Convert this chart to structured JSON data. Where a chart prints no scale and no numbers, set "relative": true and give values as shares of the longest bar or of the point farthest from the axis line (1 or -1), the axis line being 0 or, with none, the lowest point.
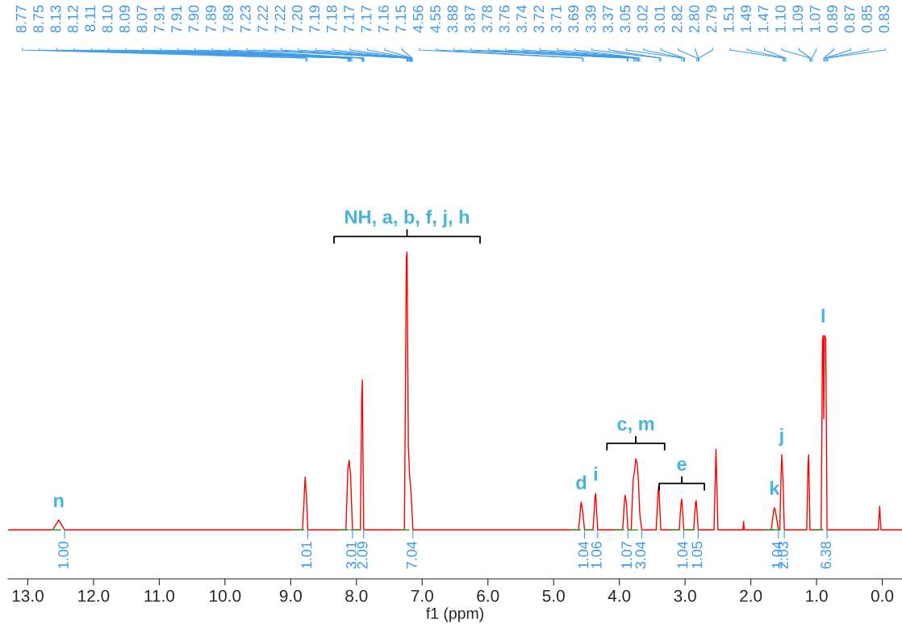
{
  "chart_data": {
    "type": "line",
    "relative": true,
    "xlabel": "f1 (ppm)",
    "xlim": [
      13.3,
      -0.3
    ],
    "xticks": [
      {
        "value": 13,
        "label": "13.0"
      },
      {
        "value": 12,
        "label": "12.0"
      },
      {
        "value": 11,
        "label": "11.0"
      },
      {
        "value": 10,
        "label": "10.0"
      },
      {
        "value": 9,
        "label": "9.0"
      },
      {
        "value": 8,
        "label": "8.0"
      },
      {
        "value": 7,
        "label": "7.0"
      },
      {
        "value": 6,
        "label": "6.0"
      },
      {
        "value": 5,
        "label": "5.0"
      },
      {
        "value": 4,
        "label": "4.0"
      },
      {
        "value": 3,
        "label": "3.0"
      },
      {
        "value": 2,
        "label": "2.0"
      },
      {
        "value": 1,
        "label": "1.0"
      },
      {
        "value": 0,
        "label": "0.0"
      }
    ],
    "marker": "none",
    "line_style": "solid",
    "series": [
      {
        "color": "#ff0000",
        "x": [
          13.3,
          12.62,
          12.53,
          12.44,
          8.82,
          8.78,
          8.76,
          8.74,
          8.16,
          8.13,
          8.11,
          8.09,
          8.06,
          7.94,
          7.92,
          7.91,
          7.89,
          7.27,
          7.24,
          7.23,
          7.21,
          7.19,
          7.17,
          7.14,
          4.62,
          4.59,
          4.58,
          4.56,
          4.53,
          4.4,
          4.37,
          4.36,
          4.33,
          3.95,
          3.92,
          3.91,
          3.89,
          3.87,
          3.82,
          3.79,
          3.77,
          3.75,
          3.73,
          3.71,
          3.69,
          3.66,
          3.44,
          3.41,
          3.4,
          3.37,
          3.09,
          3.06,
          3.05,
          3.02,
          2.87,
          2.84,
          2.83,
          2.8,
          2.56,
          2.53,
          2.5,
          2.12,
          2.11,
          2.1,
          1.69,
          1.65,
          1.64,
          1.62,
          1.58,
          1.56,
          1.54,
          1.53,
          1.51,
          1.49,
          1.15,
          1.13,
          1.12,
          1.1,
          0.93,
          0.91,
          0.9,
          0.89,
          0.88,
          0.86,
          0.84,
          0.06,
          0.04,
          0.02,
          -0.3
        ],
        "values": [
          0.15,
          0.15,
          0.18,
          0.15,
          0.15,
          0.312,
          0.252,
          0.15,
          0.15,
          0.337,
          0.363,
          0.32,
          0.15,
          0.15,
          0.55,
          0.609,
          0.15,
          0.15,
          0.983,
          1.0,
          0.405,
          0.312,
          0.269,
          0.15,
          0.15,
          0.218,
          0.235,
          0.21,
          0.15,
          0.15,
          0.252,
          0.261,
          0.15,
          0.15,
          0.244,
          0.256,
          0.227,
          0.15,
          0.15,
          0.303,
          0.329,
          0.367,
          0.354,
          0.303,
          0.201,
          0.15,
          0.15,
          0.269,
          0.286,
          0.15,
          0.15,
          0.235,
          0.244,
          0.15,
          0.15,
          0.235,
          0.239,
          0.15,
          0.15,
          0.397,
          0.15,
          0.15,
          0.176,
          0.15,
          0.15,
          0.21,
          0.218,
          0.201,
          0.15,
          0.15,
          0.312,
          0.38,
          0.303,
          0.15,
          0.15,
          0.346,
          0.38,
          0.15,
          0.15,
          0.728,
          0.745,
          0.49,
          0.745,
          0.737,
          0.15,
          0.15,
          0.222,
          0.15,
          0.15
        ]
      }
    ],
    "annotations": [
      "8.77",
      "8.75",
      "8.13",
      "8.12",
      "8.11",
      "8.10",
      "8.09",
      "8.07",
      "7.91",
      "7.91",
      "7.90",
      "7.89",
      "7.89",
      "7.23",
      "7.22",
      "7.22",
      "7.20",
      "7.19",
      "7.18",
      "7.17",
      "7.17",
      "7.16",
      "7.15",
      "4.56",
      "4.55",
      "3.88",
      "3.87",
      "3.78",
      "3.76",
      "3.74",
      "3.72",
      "3.71",
      "3.69",
      "3.39",
      "3.37",
      "3.05",
      "3.02",
      "3.01",
      "2.82",
      "2.80",
      "2.79",
      "1.51",
      "1.49",
      "1.47",
      "1.10",
      "1.09",
      "1.07",
      "0.89",
      "0.87",
      "0.85",
      "0.83",
      {
        "text": "NH, a, b, f, j, h",
        "x": 7.23,
        "y": 1.0
      },
      {
        "text": "c, m",
        "x": 3.75,
        "y": 0.367
      },
      {
        "text": "e",
        "x": 3.05,
        "y": 0.244
      },
      {
        "text": "n",
        "x": 12.53,
        "y": 0.18
      },
      {
        "text": "d",
        "x": 4.58,
        "y": 0.235
      },
      {
        "text": "i",
        "x": 4.36,
        "y": 0.261
      },
      {
        "text": "k",
        "x": 1.64,
        "y": 0.218
      },
      {
        "text": "j",
        "x": 1.53,
        "y": 0.38
      },
      {
        "text": "l",
        "x": 0.9,
        "y": 0.745
      },
      {
        "text": "1.00",
        "x": 12.44,
        "y": 0.15
      },
      {
        "text": "1.01",
        "x": 8.74,
        "y": 0.15
      },
      {
        "text": "3.01",
        "x": 8.06,
        "y": 0.15
      },
      {
        "text": "2.09",
        "x": 7.89,
        "y": 0.15
      },
      {
        "text": "7.04",
        "x": 7.14,
        "y": 0.15
      },
      {
        "text": "1.04",
        "x": 4.53,
        "y": 0.15
      },
      {
        "text": "1.06",
        "x": 4.33,
        "y": 0.15
      },
      {
        "text": "1.07",
        "x": 3.87,
        "y": 0.15
      },
      {
        "text": "3.04",
        "x": 3.66,
        "y": 0.15
      },
      {
        "text": "1.04",
        "x": 3.02,
        "y": 0.15
      },
      {
        "text": "1.05",
        "x": 2.8,
        "y": 0.15
      },
      {
        "text": "1.04",
        "x": 1.58,
        "y": 0.15
      },
      {
        "text": "2.03",
        "x": 1.49,
        "y": 0.15
      },
      {
        "text": "6.38",
        "x": 0.84,
        "y": 0.15
      }
    ]
  }
}
